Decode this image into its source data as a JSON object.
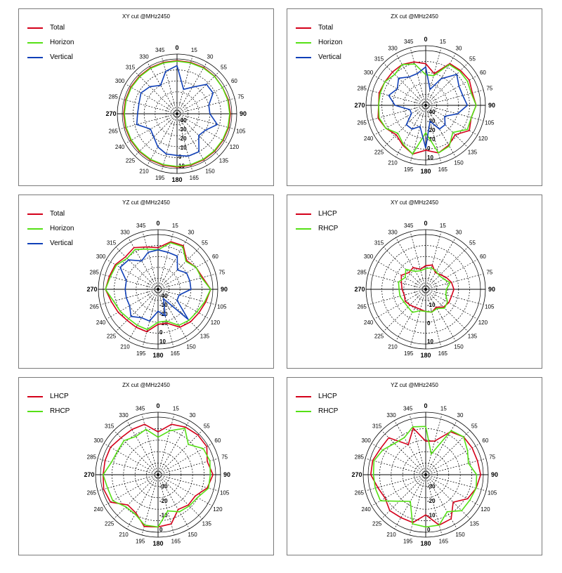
{
  "colors": {
    "total": "#d4001a",
    "horizon": "#55e015",
    "vertical": "#1040b8",
    "lhcp": "#d4001a",
    "rhcp": "#55e015"
  },
  "chart_data": [
    {
      "type": "polar",
      "title": "XY cut @MHz2450",
      "angle_ticks": [
        "0",
        "15",
        "30",
        "55",
        "60",
        "75",
        "90",
        "105",
        "120",
        "135",
        "150",
        "165",
        "180",
        "195",
        "210",
        "225",
        "240",
        "265",
        "270",
        "285",
        "300",
        "315",
        "330",
        "345"
      ],
      "radial_labels": [
        "10",
        "0",
        "-10",
        "-20",
        "-30",
        "-40"
      ],
      "rlim": [
        -40,
        10
      ],
      "series": [
        {
          "name": "Total",
          "color_key": "total",
          "values": [
            8.5,
            8.5,
            8.7,
            8.5,
            8.0,
            8.5,
            8.7,
            8.7,
            8.5,
            8.5,
            8.5,
            8.7,
            8.7,
            8.7,
            8.7,
            8.7,
            8.7,
            8.7,
            8.7,
            8.7,
            8.7,
            8.5,
            8.5,
            8.5
          ]
        },
        {
          "name": "Horizon",
          "color_key": "horizon",
          "values": [
            8.0,
            8.0,
            8.2,
            8.2,
            7.9,
            8.0,
            8.1,
            8.1,
            8.0,
            8.0,
            8.0,
            8.1,
            8.1,
            8.1,
            8.1,
            8.1,
            8.1,
            8.1,
            8.1,
            8.1,
            8.1,
            8.0,
            8.0,
            8.0
          ]
        },
        {
          "name": "Vertical",
          "color_key": "vertical",
          "values": [
            4.0,
            -17.0,
            -12.0,
            -2.0,
            -2.0,
            -10.0,
            -10.0,
            -2.0,
            -10.0,
            -12.0,
            0.0,
            0.0,
            -2.0,
            -2.0,
            -5.0,
            -10.0,
            -12.0,
            -2.0,
            -4.0,
            -4.0,
            -2.0,
            -5.0,
            -10.0,
            0.0
          ]
        }
      ]
    },
    {
      "type": "polar",
      "title": "ZX cut @MHz2450",
      "angle_ticks": [
        "0",
        "15",
        "30",
        "55",
        "60",
        "75",
        "90",
        "105",
        "120",
        "135",
        "150",
        "165",
        "180",
        "195",
        "210",
        "225",
        "240",
        "265",
        "270",
        "285",
        "300",
        "315",
        "330",
        "345"
      ],
      "radial_labels": [
        "10",
        "0",
        "-10",
        "-20",
        "-30",
        "-40"
      ],
      "rlim": [
        -40,
        10
      ],
      "series": [
        {
          "name": "Total",
          "color_key": "total",
          "values": [
            -2.0,
            -10.0,
            4.0,
            5.0,
            6.0,
            4.0,
            6.0,
            3.0,
            6.0,
            -2.0,
            2.0,
            5.0,
            1.0,
            6.0,
            2.0,
            -2.0,
            2.0,
            5.0,
            3.0,
            4.0,
            3.0,
            3.0,
            3.0,
            1.0
          ]
        },
        {
          "name": "Horizon",
          "color_key": "horizon",
          "values": [
            -12.0,
            -12.0,
            3.0,
            4.0,
            4.0,
            3.0,
            6.0,
            3.0,
            4.0,
            -5.0,
            3.0,
            5.0,
            -15.0,
            6.0,
            1.0,
            -4.0,
            2.0,
            4.0,
            3.0,
            3.0,
            3.0,
            0.0,
            3.0,
            -1.0
          ]
        },
        {
          "name": "Vertical",
          "color_key": "vertical",
          "values": [
            -5.0,
            -25.0,
            -12.0,
            0.0,
            -5.0,
            -5.0,
            -2.0,
            -10.0,
            -20.0,
            -15.0,
            -15.0,
            -25.0,
            -1.0,
            -20.0,
            -15.0,
            -15.0,
            -25.0,
            -25.0,
            -12.0,
            -5.0,
            -10.0,
            -5.0,
            -10.0,
            -10.0
          ]
        }
      ]
    },
    {
      "type": "polar",
      "title": "YZ cut @MHz2450",
      "angle_ticks": [
        "0",
        "15",
        "30",
        "55",
        "60",
        "75",
        "90",
        "105",
        "120",
        "135",
        "150",
        "165",
        "180",
        "195",
        "210",
        "225",
        "240",
        "265",
        "270",
        "285",
        "300",
        "315",
        "330",
        "345"
      ],
      "radial_labels": [
        "10",
        "0",
        "-10",
        "-20",
        "-30",
        "-40"
      ],
      "rlim": [
        -40,
        10
      ],
      "series": [
        {
          "name": "Total",
          "color_key": "total",
          "values": [
            -2.0,
            5.0,
            6.0,
            -3.0,
            0.0,
            2.0,
            8.0,
            5.0,
            3.0,
            2.0,
            0.0,
            -8.0,
            -8.0,
            0.0,
            0.0,
            0.0,
            2.0,
            4.0,
            8.0,
            6.0,
            5.0,
            2.0,
            4.0,
            0.0
          ]
        },
        {
          "name": "Horizon",
          "color_key": "horizon",
          "values": [
            -4.0,
            4.0,
            5.0,
            -4.0,
            0.0,
            1.0,
            8.0,
            4.0,
            1.0,
            0.0,
            -2.0,
            -10.0,
            -10.0,
            -2.0,
            -2.0,
            -2.0,
            0.0,
            2.0,
            8.0,
            5.0,
            4.0,
            0.0,
            2.0,
            -2.0
          ]
        },
        {
          "name": "Vertical",
          "color_key": "vertical",
          "values": [
            -4.0,
            -5.0,
            -5.0,
            -15.0,
            -10.0,
            -10.0,
            -10.0,
            -20.0,
            -20.0,
            -1.0,
            -30.0,
            -15.0,
            -20.0,
            -10.0,
            -10.0,
            -5.0,
            -10.0,
            -10.0,
            -10.0,
            -10.0,
            0.0,
            -2.0,
            -10.0,
            -5.0
          ]
        }
      ]
    },
    {
      "type": "polar",
      "title": "XY cut @MHz2450",
      "angle_ticks": [
        "0",
        "15",
        "30",
        "55",
        "60",
        "75",
        "90",
        "105",
        "120",
        "135",
        "150",
        "165",
        "180",
        "195",
        "210",
        "225",
        "240",
        "265",
        "270",
        "285",
        "300",
        "315",
        "330",
        "345"
      ],
      "radial_labels": [
        "10",
        "0",
        "-10"
      ],
      "rlim": [
        -25,
        12
      ],
      "series": [
        {
          "name": "LHCP",
          "color_key": "lhcp",
          "values": [
            -9.0,
            -8.0,
            -12.0,
            -11.0,
            -9.0,
            -7.0,
            -6.0,
            -7.0,
            -7.0,
            -8.0,
            -11.0,
            -9.0,
            -10.0,
            -11.0,
            -11.0,
            -10.0,
            -9.0,
            -10.0,
            -9.0,
            -8.0,
            -6.0,
            -9.0,
            -8.0,
            -11.0
          ]
        },
        {
          "name": "RHCP",
          "color_key": "rhcp",
          "values": [
            -11.0,
            -10.0,
            -11.0,
            -12.0,
            -11.0,
            -8.0,
            -11.0,
            -11.0,
            -8.0,
            -7.0,
            -10.0,
            -9.0,
            -10.0,
            -10.0,
            -7.0,
            -8.0,
            -8.0,
            -7.0,
            -7.0,
            -6.0,
            -9.0,
            -6.0,
            -11.0,
            -12.0
          ]
        }
      ]
    },
    {
      "type": "polar",
      "title": "ZX cut @MHz2450",
      "angle_ticks": [
        "0",
        "15",
        "30",
        "55",
        "60",
        "75",
        "90",
        "105",
        "120",
        "135",
        "150",
        "165",
        "180",
        "195",
        "210",
        "225",
        "240",
        "265",
        "270",
        "285",
        "300",
        "315",
        "330",
        "345"
      ],
      "radial_labels": [
        "0",
        "-10",
        "-20",
        "-30"
      ],
      "rlim": [
        -40,
        3
      ],
      "series": [
        {
          "name": "LHCP",
          "color_key": "lhcp",
          "values": [
            -8.0,
            -1.0,
            1.0,
            2.0,
            2.0,
            -2.0,
            1.0,
            -2.0,
            -8.0,
            -8.0,
            -10.0,
            -2.0,
            -1.0,
            0.0,
            -7.0,
            -8.0,
            1.0,
            2.0,
            1.0,
            1.0,
            1.0,
            -1.0,
            -1.0,
            -1.0
          ]
        },
        {
          "name": "RHCP",
          "color_key": "rhcp",
          "values": [
            -12.0,
            -6.0,
            0.0,
            -8.0,
            -1.0,
            0.0,
            -1.0,
            -1.0,
            -6.0,
            -7.0,
            -8.0,
            -12.0,
            -1.0,
            -1.0,
            -6.0,
            -6.0,
            -1.0,
            -1.0,
            1.0,
            -4.0,
            -5.0,
            -4.0,
            -7.0,
            -5.0
          ]
        }
      ]
    },
    {
      "type": "polar",
      "title": "YZ cut @MHz2450",
      "angle_ticks": [
        "0",
        "15",
        "30",
        "55",
        "60",
        "75",
        "90",
        "105",
        "120",
        "135",
        "150",
        "165",
        "180",
        "195",
        "210",
        "225",
        "240",
        "265",
        "270",
        "285",
        "300",
        "315",
        "330",
        "345"
      ],
      "radial_labels": [
        "0",
        "-10",
        "-20",
        "-30"
      ],
      "rlim": [
        -40,
        3
      ],
      "series": [
        {
          "name": "LHCP",
          "color_key": "lhcp",
          "values": [
            -15.0,
            -14.0,
            -3.0,
            0.0,
            0.0,
            0.0,
            1.0,
            -1.0,
            -4.0,
            -11.0,
            -2.0,
            -1.0,
            -10.0,
            -3.0,
            -3.0,
            -2.0,
            -5.0,
            -3.0,
            1.0,
            1.0,
            -1.0,
            -1.0,
            -14.0,
            -4.0
          ]
        },
        {
          "name": "RHCP",
          "color_key": "rhcp",
          "values": [
            -4.0,
            -24.0,
            -2.0,
            0.0,
            -4.0,
            -7.0,
            -2.0,
            -1.0,
            -2.0,
            -2.0,
            -8.0,
            -1.0,
            -1.0,
            -2.0,
            -17.0,
            -12.0,
            -1.0,
            -1.0,
            -1.0,
            0.0,
            -3.0,
            -7.0,
            -8.0,
            -3.0
          ]
        }
      ]
    }
  ]
}
